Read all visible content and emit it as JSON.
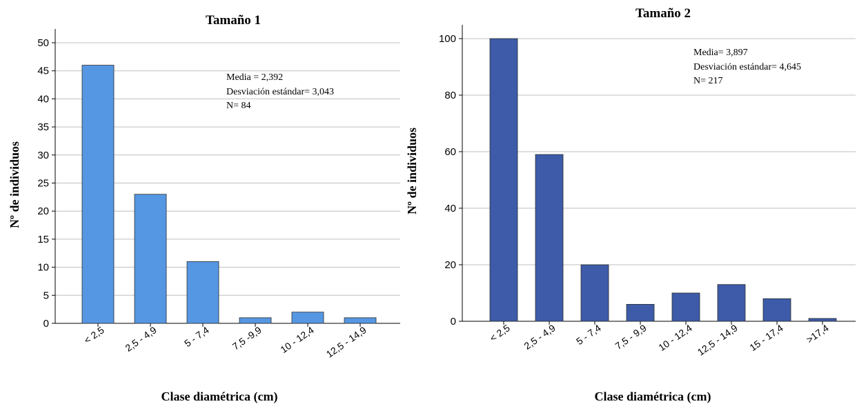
{
  "chart_data": [
    {
      "type": "bar",
      "title": "Tamaño 1",
      "xlabel": "Clase diamétrica (cm)",
      "ylabel": "Nº de individuos",
      "ylim": [
        0,
        50
      ],
      "yticks": [
        0,
        5,
        10,
        15,
        20,
        25,
        30,
        35,
        40,
        45,
        50
      ],
      "categories": [
        "< 2,5",
        "2,5 - 4,9",
        "5 - 7,4",
        "7,5 -9,9",
        "10 - 12,4",
        "12,5 - 14,9"
      ],
      "values": [
        46,
        23,
        11,
        1,
        2,
        1
      ],
      "color": "#5597e2",
      "grid": true,
      "annotations": [
        "Media = 2,392",
        "Desviación estándar= 3,043",
        "N= 84"
      ]
    },
    {
      "type": "bar",
      "title": "Tamaño 2",
      "xlabel": "Clase diamétrica (cm)",
      "ylabel": "Nº de individuos",
      "ylim": [
        0,
        100
      ],
      "yticks": [
        0,
        20,
        40,
        60,
        80,
        100
      ],
      "categories": [
        "< 2,5",
        "2,5 - 4,9",
        "5 - 7,4",
        "7,5 - 9,9",
        "10 - 12,4",
        "12,5 - 14,9",
        "15 - 17,4",
        ">17,4"
      ],
      "values": [
        100,
        59,
        20,
        6,
        10,
        13,
        8,
        1
      ],
      "color": "#3d5ba8",
      "grid": true,
      "annotations": [
        "Media= 3,897",
        "Desviación estándar= 4,645",
        "N= 217"
      ]
    }
  ]
}
